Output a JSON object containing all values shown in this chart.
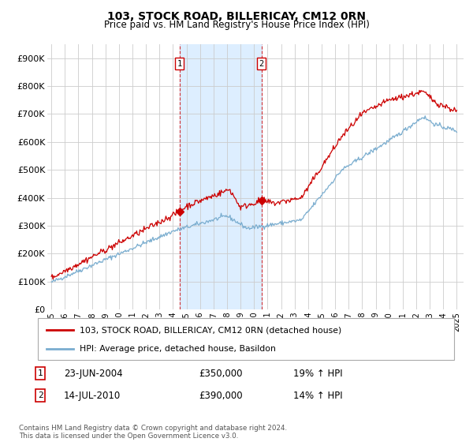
{
  "title": "103, STOCK ROAD, BILLERICAY, CM12 0RN",
  "subtitle": "Price paid vs. HM Land Registry's House Price Index (HPI)",
  "ylim": [
    0,
    950000
  ],
  "yticks": [
    0,
    100000,
    200000,
    300000,
    400000,
    500000,
    600000,
    700000,
    800000,
    900000
  ],
  "ytick_labels": [
    "£0",
    "£100K",
    "£200K",
    "£300K",
    "£400K",
    "£500K",
    "£600K",
    "£700K",
    "£800K",
    "£900K"
  ],
  "line1_color": "#cc0000",
  "line2_color": "#7aadcf",
  "shade_color": "#ddeeff",
  "marker1_x": 2004.48,
  "marker1_y": 350000,
  "marker2_x": 2010.54,
  "marker2_y": 390000,
  "marker1_label": "1",
  "marker2_label": "2",
  "annotation1_date": "23-JUN-2004",
  "annotation1_price": "£350,000",
  "annotation1_hpi": "19% ↑ HPI",
  "annotation2_date": "14-JUL-2010",
  "annotation2_price": "£390,000",
  "annotation2_hpi": "14% ↑ HPI",
  "legend_line1": "103, STOCK ROAD, BILLERICAY, CM12 0RN (detached house)",
  "legend_line2": "HPI: Average price, detached house, Basildon",
  "footer": "Contains HM Land Registry data © Crown copyright and database right 2024.\nThis data is licensed under the Open Government Licence v3.0.",
  "xtick_years": [
    1995,
    1996,
    1997,
    1998,
    1999,
    2000,
    2001,
    2002,
    2003,
    2004,
    2005,
    2006,
    2007,
    2008,
    2009,
    2010,
    2011,
    2012,
    2013,
    2014,
    2015,
    2016,
    2017,
    2018,
    2019,
    2020,
    2021,
    2022,
    2023,
    2024,
    2025
  ]
}
